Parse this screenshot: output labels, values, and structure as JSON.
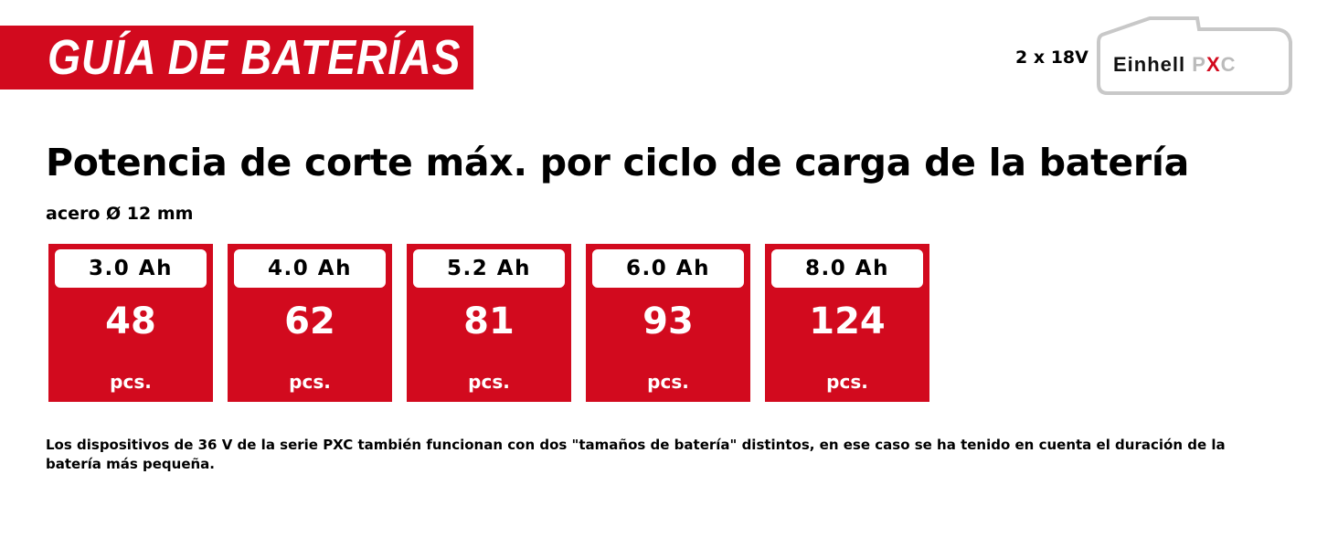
{
  "banner": {
    "title": "GUÍA DE BATERÍAS"
  },
  "header": {
    "voltage": "2 x 18V",
    "logo": {
      "brand": "Einhell",
      "series": "PXC",
      "accent": "#d20a1e"
    }
  },
  "main": {
    "title": "Potencia de corte máx. por ciclo de carga de la batería",
    "subtitle": "acero Ø 12 mm",
    "cards": [
      {
        "capacity": "3.0 Ah",
        "value": "48",
        "unit": "pcs."
      },
      {
        "capacity": "4.0 Ah",
        "value": "62",
        "unit": "pcs."
      },
      {
        "capacity": "5.2 Ah",
        "value": "81",
        "unit": "pcs."
      },
      {
        "capacity": "6.0 Ah",
        "value": "93",
        "unit": "pcs."
      },
      {
        "capacity": "8.0 Ah",
        "value": "124",
        "unit": "pcs."
      }
    ],
    "note": "Los dispositivos de 36 V de la serie PXC también funcionan con dos \"tamaños de batería\" distintos, en ese caso se ha tenido en cuenta el duración de la batería más pequeña."
  },
  "colors": {
    "red": "#d20a1e",
    "logo_outline": "#c8c8c8"
  }
}
